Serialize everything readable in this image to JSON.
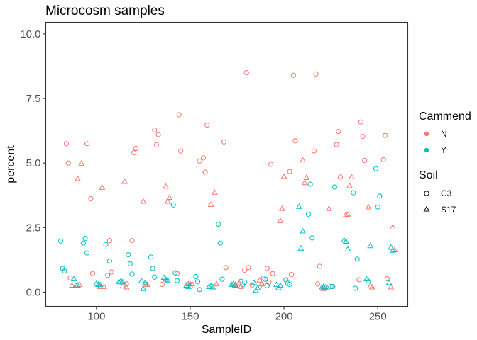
{
  "chart_data": {
    "type": "scatter",
    "title": "Microcosm samples",
    "xlabel": "SampleID",
    "ylabel": "percent",
    "xlim": [
      73,
      266
    ],
    "ylim": [
      -0.55,
      10.45
    ],
    "xticks": [
      100,
      150,
      200,
      250
    ],
    "xtick_labels": [
      "100",
      "150",
      "200",
      "250"
    ],
    "yticks": [
      0.0,
      2.5,
      5.0,
      7.5,
      10.0
    ],
    "ytick_labels": [
      "0.0",
      "2.5",
      "5.0",
      "7.5",
      "10.0"
    ],
    "grid": false,
    "legend_placement": "right",
    "legend": {
      "color_title": "Cammend",
      "color_entries": [
        {
          "label": "N",
          "color": "#F8766D"
        },
        {
          "label": "Y",
          "color": "#00BFC4"
        }
      ],
      "shape_title": "Soil",
      "shape_entries": [
        {
          "label": "C3",
          "shape": "circle"
        },
        {
          "label": "S17",
          "shape": "triangle"
        }
      ]
    },
    "colors": {
      "N": "#F8766D",
      "Y": "#00BFC4"
    },
    "series": [
      {
        "name": "N / C3",
        "cammend": "N",
        "soil": "C3",
        "x": [
          84,
          85,
          86,
          95,
          97,
          98,
          107,
          108,
          116,
          119,
          120,
          121,
          131,
          132,
          133,
          135,
          143,
          144,
          145,
          155,
          157,
          158,
          159,
          168,
          169,
          179,
          180,
          181,
          183,
          191,
          192,
          193,
          194,
          203,
          204,
          205,
          206,
          216,
          217,
          218,
          219,
          228,
          229,
          230,
          240,
          241,
          242,
          243,
          253,
          254,
          255
        ],
        "y": [
          5.75,
          5.0,
          0.55,
          5.75,
          3.62,
          0.72,
          2.0,
          0.78,
          0.32,
          2.0,
          5.4,
          5.57,
          6.28,
          5.71,
          6.1,
          0.3,
          0.72,
          6.87,
          5.47,
          5.08,
          5.2,
          4.65,
          6.47,
          5.82,
          0.95,
          0.85,
          8.5,
          0.95,
          0.28,
          0.92,
          0.38,
          4.95,
          0.72,
          4.67,
          0.68,
          8.4,
          5.86,
          5.47,
          8.45,
          0.32,
          1.0,
          5.72,
          6.22,
          4.46,
          0.48,
          6.59,
          6.03,
          5.1,
          5.13,
          6.07,
          0.52
        ]
      },
      {
        "name": "N / S17",
        "cammend": "N",
        "soil": "S17",
        "x": [
          87,
          90,
          91,
          92,
          102,
          103,
          104,
          114,
          115,
          116,
          125,
          126,
          127,
          137,
          138,
          139,
          149,
          150,
          151,
          161,
          163,
          164,
          174,
          176,
          177,
          187,
          188,
          189,
          198,
          199,
          200,
          210,
          211,
          212,
          221,
          223,
          224,
          233,
          234,
          235,
          236,
          245,
          246,
          247,
          257,
          258,
          259
        ],
        "y": [
          0.25,
          4.38,
          0.28,
          4.97,
          0.2,
          4.04,
          0.2,
          0.22,
          4.27,
          0.18,
          3.5,
          0.28,
          0.28,
          4.08,
          3.5,
          3.65,
          0.3,
          0.3,
          0.3,
          3.38,
          3.85,
          0.3,
          0.28,
          0.35,
          0.2,
          0.45,
          0.3,
          0.22,
          2.75,
          3.22,
          4.46,
          5.1,
          4.22,
          4.42,
          0.12,
          0.15,
          3.22,
          2.98,
          3.0,
          4.1,
          4.45,
          3.28,
          0.23,
          0.18,
          0.18,
          2.5,
          1.62
        ]
      },
      {
        "name": "Y / C3",
        "cammend": "Y",
        "soil": "C3",
        "x": [
          81,
          82,
          83,
          93,
          94,
          95,
          105,
          106,
          107,
          117,
          118,
          119,
          129,
          130,
          131,
          141,
          142,
          143,
          153,
          154,
          155,
          165,
          166,
          167,
          177,
          178,
          179,
          189,
          190,
          191,
          201,
          202,
          203,
          213,
          214,
          215,
          225,
          226,
          227,
          237,
          238,
          239,
          249,
          250,
          251
        ],
        "y": [
          1.98,
          0.92,
          0.82,
          1.9,
          2.08,
          1.52,
          1.85,
          0.65,
          1.2,
          1.45,
          1.1,
          0.7,
          1.36,
          0.92,
          0.58,
          3.38,
          0.75,
          0.45,
          0.6,
          0.4,
          0.1,
          2.63,
          1.9,
          0.5,
          0.42,
          0.28,
          0.38,
          0.55,
          0.5,
          0.25,
          0.48,
          0.35,
          0.3,
          3.02,
          4.18,
          2.1,
          0.22,
          0.22,
          4.07,
          3.85,
          0.15,
          1.28,
          4.78,
          3.3,
          3.72
        ]
      },
      {
        "name": "Y / S17",
        "cammend": "Y",
        "soil": "S17",
        "x": [
          88,
          89,
          90,
          100,
          101,
          102,
          112,
          113,
          114,
          124,
          125,
          126,
          136,
          137,
          138,
          148,
          149,
          150,
          160,
          161,
          162,
          172,
          173,
          174,
          184,
          185,
          186,
          196,
          197,
          198,
          208,
          209,
          210,
          220,
          221,
          222,
          232,
          233,
          234,
          244,
          245,
          246,
          256,
          257,
          258
        ],
        "y": [
          0.5,
          0.25,
          0.25,
          0.32,
          0.28,
          0.27,
          0.38,
          0.42,
          0.38,
          0.42,
          0.12,
          0.35,
          0.55,
          0.48,
          0.45,
          0.25,
          0.2,
          0.22,
          0.2,
          0.22,
          0.18,
          0.28,
          0.3,
          0.25,
          0.35,
          0.05,
          0.15,
          0.28,
          0.15,
          0.25,
          3.3,
          1.68,
          2.35,
          0.15,
          0.2,
          0.18,
          2.0,
          1.95,
          1.65,
          0.5,
          0.42,
          1.78,
          0.35,
          1.72,
          1.6
        ]
      }
    ]
  }
}
